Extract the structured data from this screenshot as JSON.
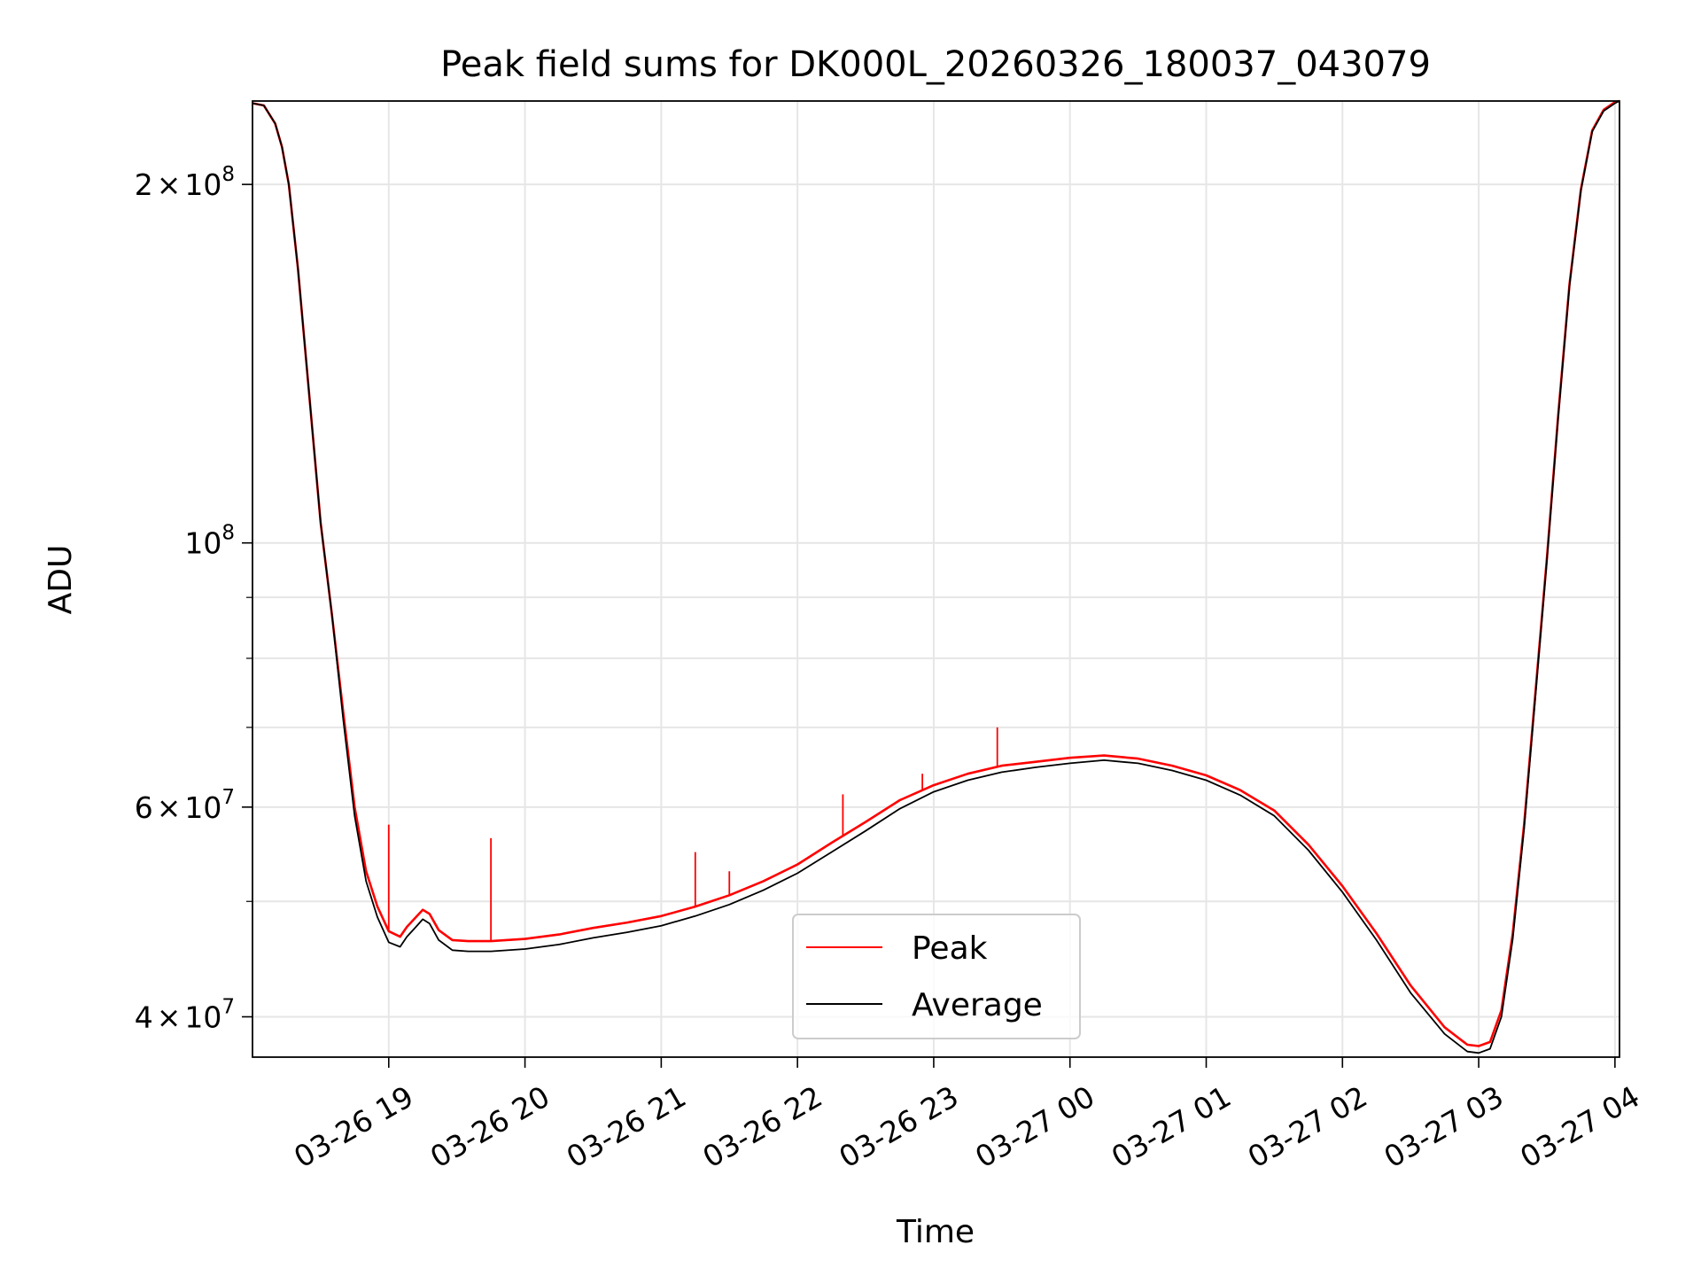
{
  "chart_data": {
    "type": "line",
    "title": "Peak field sums for DK000L_20260326_180037_043079",
    "xlabel": "Time",
    "ylabel": "ADU",
    "yscale": "log",
    "ylim": [
      37000000,
      235000000
    ],
    "xlim": [
      "03-26 18:00",
      "03-27 04:02"
    ],
    "grid": true,
    "legend_position": "lower center",
    "x_ticks": [
      "03-26 19",
      "03-26 20",
      "03-26 21",
      "03-26 22",
      "03-26 23",
      "03-27 00",
      "03-27 01",
      "03-27 02",
      "03-27 03",
      "03-27 04"
    ],
    "x_tick_values": [
      "03-26 19:00",
      "03-26 20:00",
      "03-26 21:00",
      "03-26 22:00",
      "03-26 23:00",
      "03-27 00:00",
      "03-27 01:00",
      "03-27 02:00",
      "03-27 03:00",
      "03-27 04:00"
    ],
    "y_ticks": [
      {
        "value": 40000000,
        "base": "4",
        "mult": "×",
        "pow": "10",
        "exp": "7"
      },
      {
        "value": 60000000,
        "base": "6",
        "mult": "×",
        "pow": "10",
        "exp": "7"
      },
      {
        "value": 100000000,
        "base": "",
        "mult": "",
        "pow": "10",
        "exp": "8"
      },
      {
        "value": 200000000,
        "base": "2",
        "mult": "×",
        "pow": "10",
        "exp": "8"
      }
    ],
    "y_minor_ticks": [
      50000000,
      70000000,
      80000000,
      90000000
    ],
    "series": [
      {
        "name": "Peak",
        "color": "#ff0000",
        "x": [
          "03-26 18:00",
          "03-26 18:05",
          "03-26 18:10",
          "03-26 18:13",
          "03-26 18:16",
          "03-26 18:20",
          "03-26 18:25",
          "03-26 18:30",
          "03-26 18:35",
          "03-26 18:40",
          "03-26 18:45",
          "03-26 18:50",
          "03-26 18:55",
          "03-26 19:00",
          "03-26 19:05",
          "03-26 19:08",
          "03-26 19:12",
          "03-26 19:15",
          "03-26 19:18",
          "03-26 19:22",
          "03-26 19:28",
          "03-26 19:35",
          "03-26 19:45",
          "03-26 20:00",
          "03-26 20:15",
          "03-26 20:30",
          "03-26 20:45",
          "03-26 21:00",
          "03-26 21:15",
          "03-26 21:30",
          "03-26 21:45",
          "03-26 22:00",
          "03-26 22:15",
          "03-26 22:30",
          "03-26 22:45",
          "03-26 23:00",
          "03-26 23:15",
          "03-26 23:30",
          "03-26 23:45",
          "03-27 00:00",
          "03-27 00:15",
          "03-27 00:30",
          "03-27 00:45",
          "03-27 01:00",
          "03-27 01:15",
          "03-27 01:30",
          "03-27 01:45",
          "03-27 02:00",
          "03-27 02:15",
          "03-27 02:30",
          "03-27 02:45",
          "03-27 02:55",
          "03-27 03:00",
          "03-27 03:05",
          "03-27 03:10",
          "03-27 03:15",
          "03-27 03:20",
          "03-27 03:25",
          "03-27 03:30",
          "03-27 03:35",
          "03-27 03:40",
          "03-27 03:45",
          "03-27 03:50",
          "03-27 03:55",
          "03-27 04:00",
          "03-27 04:02"
        ],
        "y": [
          234000000,
          233000000,
          225000000,
          215000000,
          200000000,
          170000000,
          133000000,
          104000000,
          87000000,
          72000000,
          60000000,
          53000000,
          49500000,
          47200000,
          46700000,
          47600000,
          48500000,
          49200000,
          48800000,
          47300000,
          46400000,
          46300000,
          46300000,
          46500000,
          46900000,
          47500000,
          48000000,
          48600000,
          49500000,
          50600000,
          52000000,
          53700000,
          56000000,
          58300000,
          60800000,
          62600000,
          64000000,
          65000000,
          65500000,
          66000000,
          66300000,
          65900000,
          65000000,
          63800000,
          62000000,
          59600000,
          55800000,
          51500000,
          47000000,
          42500000,
          39200000,
          37900000,
          37800000,
          38100000,
          40500000,
          47000000,
          58000000,
          75000000,
          97000000,
          128000000,
          165000000,
          198000000,
          222000000,
          231000000,
          234500000,
          235000000
        ]
      },
      {
        "name": "Average",
        "color": "#000000",
        "x": [
          "03-26 18:00",
          "03-26 18:05",
          "03-26 18:10",
          "03-26 18:13",
          "03-26 18:16",
          "03-26 18:20",
          "03-26 18:25",
          "03-26 18:30",
          "03-26 18:35",
          "03-26 18:40",
          "03-26 18:45",
          "03-26 18:50",
          "03-26 18:55",
          "03-26 19:00",
          "03-26 19:05",
          "03-26 19:08",
          "03-26 19:12",
          "03-26 19:15",
          "03-26 19:18",
          "03-26 19:22",
          "03-26 19:28",
          "03-26 19:35",
          "03-26 19:45",
          "03-26 20:00",
          "03-26 20:15",
          "03-26 20:30",
          "03-26 20:45",
          "03-26 21:00",
          "03-26 21:15",
          "03-26 21:30",
          "03-26 21:45",
          "03-26 22:00",
          "03-26 22:15",
          "03-26 22:30",
          "03-26 22:45",
          "03-26 23:00",
          "03-26 23:15",
          "03-26 23:30",
          "03-26 23:45",
          "03-27 00:00",
          "03-27 00:15",
          "03-27 00:30",
          "03-27 00:45",
          "03-27 01:00",
          "03-27 01:15",
          "03-27 01:30",
          "03-27 01:45",
          "03-27 02:00",
          "03-27 02:15",
          "03-27 02:30",
          "03-27 02:45",
          "03-27 02:55",
          "03-27 03:00",
          "03-27 03:05",
          "03-27 03:10",
          "03-27 03:15",
          "03-27 03:20",
          "03-27 03:25",
          "03-27 03:30",
          "03-27 03:35",
          "03-27 03:40",
          "03-27 03:45",
          "03-27 03:50",
          "03-27 03:55",
          "03-27 04:00",
          "03-27 04:02"
        ],
        "y": [
          234000000,
          233000000,
          225000000,
          215000000,
          200000000,
          170000000,
          133000000,
          104000000,
          87000000,
          71000000,
          59000000,
          52000000,
          48500000,
          46200000,
          45800000,
          46700000,
          47600000,
          48300000,
          47900000,
          46400000,
          45500000,
          45400000,
          45400000,
          45600000,
          46000000,
          46600000,
          47100000,
          47700000,
          48600000,
          49700000,
          51100000,
          52800000,
          55000000,
          57300000,
          59800000,
          61800000,
          63200000,
          64200000,
          64800000,
          65300000,
          65700000,
          65300000,
          64400000,
          63200000,
          61400000,
          59000000,
          55200000,
          50900000,
          46400000,
          41900000,
          38700000,
          37400000,
          37300000,
          37600000,
          40000000,
          46500000,
          57500000,
          74500000,
          96500000,
          127500000,
          164500000,
          197500000,
          221500000,
          230500000,
          234000000,
          235000000
        ]
      }
    ],
    "spikes": [
      {
        "series": "Peak",
        "x": "03-26 19:00",
        "y": 58000000
      },
      {
        "series": "Peak",
        "x": "03-26 19:45",
        "y": 56500000
      },
      {
        "series": "Peak",
        "x": "03-26 21:15",
        "y": 55000000
      },
      {
        "series": "Peak",
        "x": "03-26 21:30",
        "y": 53000000
      },
      {
        "series": "Peak",
        "x": "03-26 22:20",
        "y": 61500000
      },
      {
        "series": "Peak",
        "x": "03-26 22:55",
        "y": 64000000
      },
      {
        "series": "Peak",
        "x": "03-26 23:28",
        "y": 70000000
      }
    ]
  }
}
